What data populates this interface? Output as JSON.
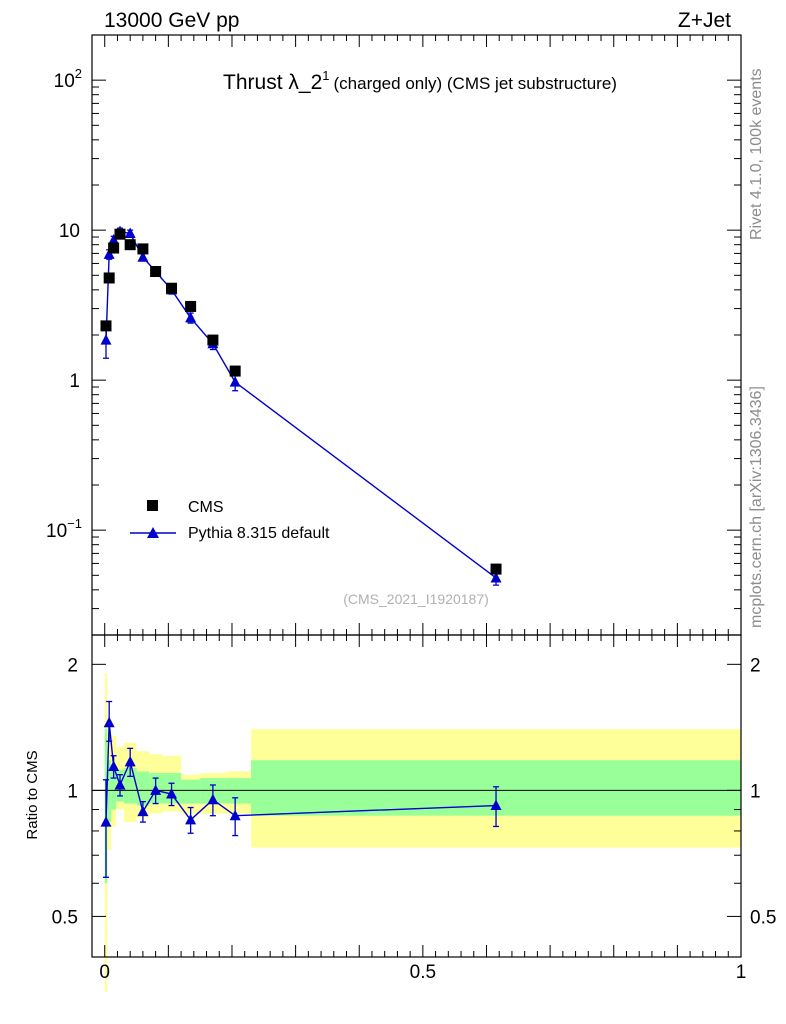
{
  "header": {
    "energy": "13000 GeV pp",
    "process": "Z+Jet"
  },
  "sidebar": {
    "rivet": "Rivet 4.1.0,  100k events",
    "source": "mcplots.cern.ch [arXiv:1306.3436]"
  },
  "chart_data": [
    {
      "type": "scatter",
      "title": "Thrust λ_2¹ (charged only) (CMS jet substructure)",
      "title_main": "Thrust λ_2",
      "title_sup": "1",
      "title_rest": "(charged only) (CMS jet substructure)",
      "watermark": "(CMS_2021_I1920187)",
      "yscale": "log",
      "xlim": [
        -0.02,
        1.0
      ],
      "ylim": [
        0.02,
        200
      ],
      "ytick_labels": [
        "10^-1",
        "1",
        "10",
        "10^2"
      ],
      "legend_placement": "bottom-left",
      "series": [
        {
          "name": "CMS",
          "marker": "square",
          "color": "#000000",
          "x": [
            0.002,
            0.007,
            0.014,
            0.024,
            0.04,
            0.06,
            0.08,
            0.105,
            0.135,
            0.17,
            0.205,
            0.615
          ],
          "values": [
            2.3,
            4.8,
            7.6,
            9.4,
            8.0,
            7.5,
            5.3,
            4.1,
            3.1,
            1.85,
            1.15,
            0.055
          ]
        },
        {
          "name": "Pythia 8.315 default",
          "marker": "triangle",
          "color": "#0000cc",
          "x": [
            0.002,
            0.007,
            0.014,
            0.024,
            0.04,
            0.06,
            0.08,
            0.105,
            0.135,
            0.17,
            0.205,
            0.615
          ],
          "values": [
            1.85,
            6.9,
            8.6,
            9.8,
            9.5,
            6.6,
            5.3,
            4.0,
            2.6,
            1.75,
            0.97,
            0.048
          ],
          "err_low": [
            0.45,
            0.5,
            0.5,
            0.5,
            0.5,
            0.35,
            0.3,
            0.25,
            0.2,
            0.15,
            0.12,
            0.005
          ],
          "err_high": [
            0.45,
            0.5,
            0.5,
            0.5,
            0.5,
            0.35,
            0.3,
            0.25,
            0.2,
            0.15,
            0.12,
            0.005
          ]
        }
      ]
    },
    {
      "type": "line",
      "ylabel": "Ratio to CMS",
      "xlim": [
        -0.02,
        1.0
      ],
      "ylim": [
        0.4,
        2.35
      ],
      "yscale": "log",
      "xtick_labels": [
        "0",
        "0.5",
        "1"
      ],
      "ytick_labels": [
        "0.5",
        "1",
        "2"
      ],
      "reference_line": 1,
      "bands": {
        "edges": [
          0.0,
          0.004,
          0.01,
          0.018,
          0.03,
          0.05,
          0.07,
          0.09,
          0.12,
          0.15,
          0.19,
          0.23,
          1.0
        ],
        "yellow_low": [
          0.33,
          0.72,
          0.82,
          0.9,
          0.84,
          0.86,
          0.88,
          0.89,
          0.88,
          0.88,
          0.88,
          0.73
        ],
        "yellow_high": [
          1.9,
          1.4,
          1.35,
          1.27,
          1.3,
          1.24,
          1.22,
          1.21,
          1.09,
          1.1,
          1.11,
          1.4
        ],
        "green_low": [
          0.6,
          0.84,
          0.9,
          0.94,
          0.93,
          0.92,
          0.93,
          0.93,
          0.93,
          0.93,
          0.93,
          0.87
        ],
        "green_high": [
          1.4,
          1.18,
          1.15,
          1.12,
          1.13,
          1.11,
          1.1,
          1.1,
          1.06,
          1.07,
          1.07,
          1.18
        ]
      },
      "series": [
        {
          "name": "Pythia 8.315 default / CMS",
          "color": "#0000cc",
          "x": [
            0.002,
            0.007,
            0.014,
            0.024,
            0.04,
            0.06,
            0.08,
            0.105,
            0.135,
            0.17,
            0.205,
            0.615
          ],
          "values": [
            0.84,
            1.45,
            1.14,
            1.03,
            1.17,
            0.89,
            1.0,
            0.98,
            0.85,
            0.95,
            0.87,
            0.92
          ],
          "err_low": [
            0.22,
            0.14,
            0.07,
            0.06,
            0.09,
            0.05,
            0.07,
            0.06,
            0.06,
            0.08,
            0.09,
            0.1
          ],
          "err_high": [
            0.22,
            0.18,
            0.07,
            0.06,
            0.09,
            0.05,
            0.07,
            0.06,
            0.06,
            0.08,
            0.09,
            0.1
          ]
        }
      ]
    }
  ]
}
